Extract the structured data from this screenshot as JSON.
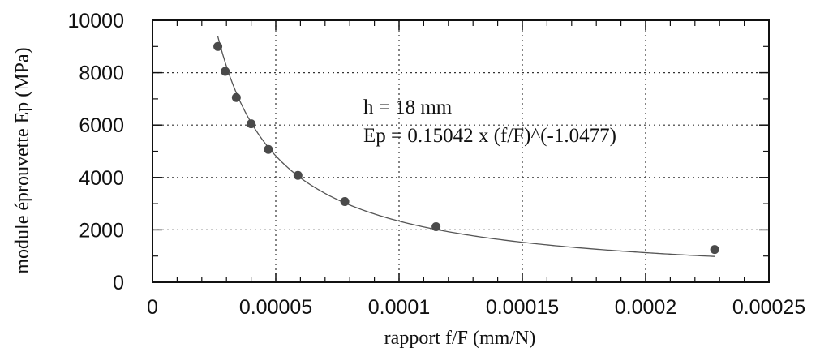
{
  "chart_data": {
    "type": "scatter",
    "title": "",
    "xlabel": "rapport f/F (mm/N)",
    "ylabel": "module éprouvette Ep (MPa)",
    "xlim": [
      0,
      0.00025
    ],
    "ylim": [
      0,
      10000
    ],
    "x_ticks": [
      "0",
      "0.00005",
      "0.0001",
      "0.00015",
      "0.0002",
      "0.00025"
    ],
    "y_ticks": [
      "0",
      "2000",
      "4000",
      "6000",
      "8000",
      "10000"
    ],
    "grid": true,
    "series": [
      {
        "x": [
          2.65e-05,
          2.95e-05,
          3.4e-05,
          4e-05,
          4.7e-05,
          5.9e-05,
          7.8e-05,
          0.000115,
          0.000228
        ],
        "y": [
          9000,
          8050,
          7050,
          6050,
          5070,
          4080,
          3080,
          2120,
          1250
        ]
      }
    ],
    "fit": {
      "a": 0.15042,
      "b": -1.0477
    },
    "annotations": [
      "h = 18 mm",
      "Ep = 0.15042 x (f/F)^(-1.0477)"
    ],
    "colors": {
      "points": "#4a4a4a",
      "fit_line": "#555555",
      "grid": "#333333",
      "axes": "#111111"
    }
  }
}
